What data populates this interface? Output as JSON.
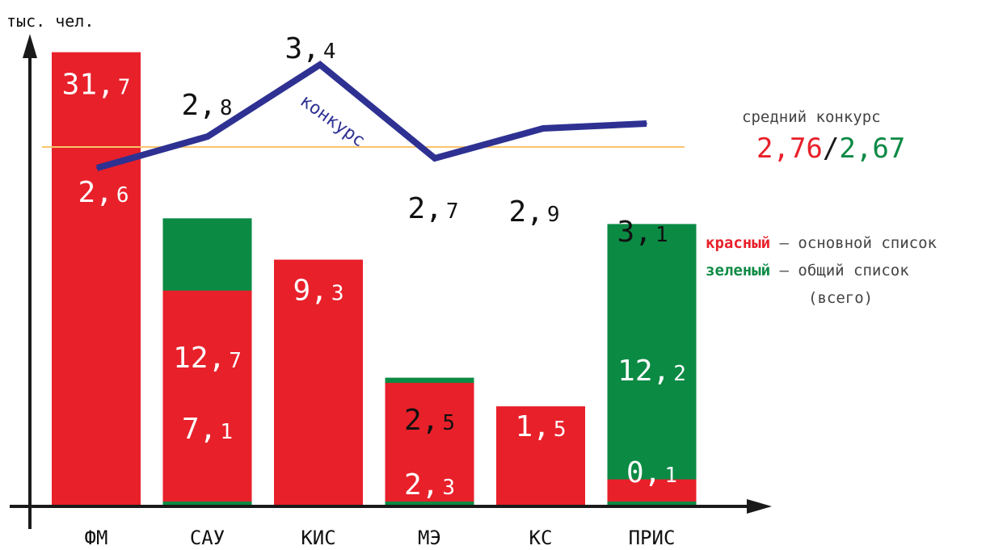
{
  "chart_data": {
    "type": "bar",
    "y_unit_label": "тыс. чел.",
    "categories": [
      "ФМ",
      "САУ",
      "КИС",
      "МЭ",
      "КС",
      "ПРИС"
    ],
    "series": [
      {
        "name": "красный",
        "values": [
          31.7,
          7.1,
          9.3,
          2.3,
          1.5,
          0.1
        ]
      },
      {
        "name": "зеленый",
        "values": [
          null,
          12.7,
          null,
          2.5,
          null,
          12.2
        ]
      }
    ],
    "bar_value_labels": {
      "red": [
        "31,7",
        "7,1",
        "9,3",
        "2,3",
        "1,5",
        "0,1"
      ],
      "green": [
        "",
        "12,7",
        "",
        "2,5",
        "",
        "12,2"
      ]
    },
    "ylim": [
      0,
      32
    ],
    "line": {
      "name": "конкурс",
      "values": [
        2.6,
        2.8,
        3.4,
        2.7,
        2.9,
        3.1
      ],
      "value_labels": [
        "2,6",
        "2,8",
        "3,4",
        "2,7",
        "2,9",
        "3,1"
      ],
      "color": "#2e3192",
      "ylim": [
        2.45,
        3.45
      ]
    },
    "reference_line": {
      "value": 2.76,
      "color": "#f9c46b"
    },
    "colors": {
      "red": "#e8202a",
      "green": "#0b8a44"
    }
  },
  "average": {
    "title": "средний конкурс",
    "red": "2,76",
    "sep": "/",
    "green": "2,67"
  },
  "legend": {
    "red_word": "красный",
    "red_text": " – основной список",
    "green_word": "зеленый",
    "green_text": " – общий список",
    "green_text_cont": "(всего)"
  }
}
